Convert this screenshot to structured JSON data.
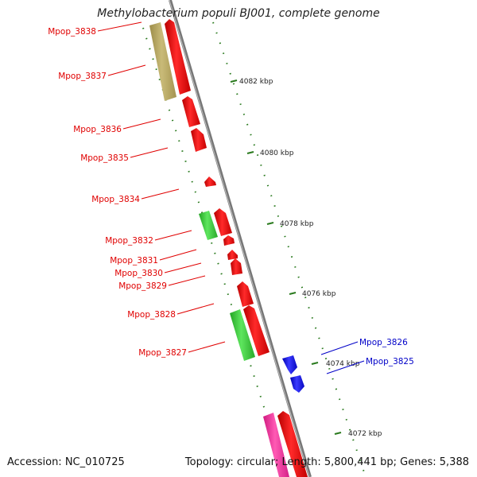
{
  "title": "Methylobacterium populi BJ001, complete genome",
  "accession_text": "Accession: NC_010725",
  "summary_text": "Topology: circular; Length: 5,800,441 bp; Genes: 5,388",
  "colors": {
    "backbone": "#888888",
    "tick": "#2a7a1e",
    "label_red": "#e00000",
    "label_blue": "#0000c8",
    "cds_red": "#ee0000",
    "cds_green": "#33cc33",
    "cds_khaki": "#b5a55e",
    "cds_pink": "#ee2a96",
    "cds_blue": "#1010dd"
  },
  "kbp_ticks": [
    "4082 kbp",
    "4080 kbp",
    "4078 kbp",
    "4076 kbp",
    "4074 kbp",
    "4072 kbp"
  ],
  "gene_labels": [
    {
      "text": "Mpop_3838",
      "strand": "reverse"
    },
    {
      "text": "Mpop_3837",
      "strand": "reverse"
    },
    {
      "text": "Mpop_3836",
      "strand": "reverse"
    },
    {
      "text": "Mpop_3835",
      "strand": "reverse"
    },
    {
      "text": "Mpop_3834",
      "strand": "reverse"
    },
    {
      "text": "Mpop_3832",
      "strand": "reverse"
    },
    {
      "text": "Mpop_3831",
      "strand": "reverse"
    },
    {
      "text": "Mpop_3830",
      "strand": "reverse"
    },
    {
      "text": "Mpop_3829",
      "strand": "reverse"
    },
    {
      "text": "Mpop_3828",
      "strand": "reverse"
    },
    {
      "text": "Mpop_3827",
      "strand": "reverse"
    },
    {
      "text": "Mpop_3826",
      "strand": "forward"
    },
    {
      "text": "Mpop_3825",
      "strand": "forward"
    }
  ]
}
